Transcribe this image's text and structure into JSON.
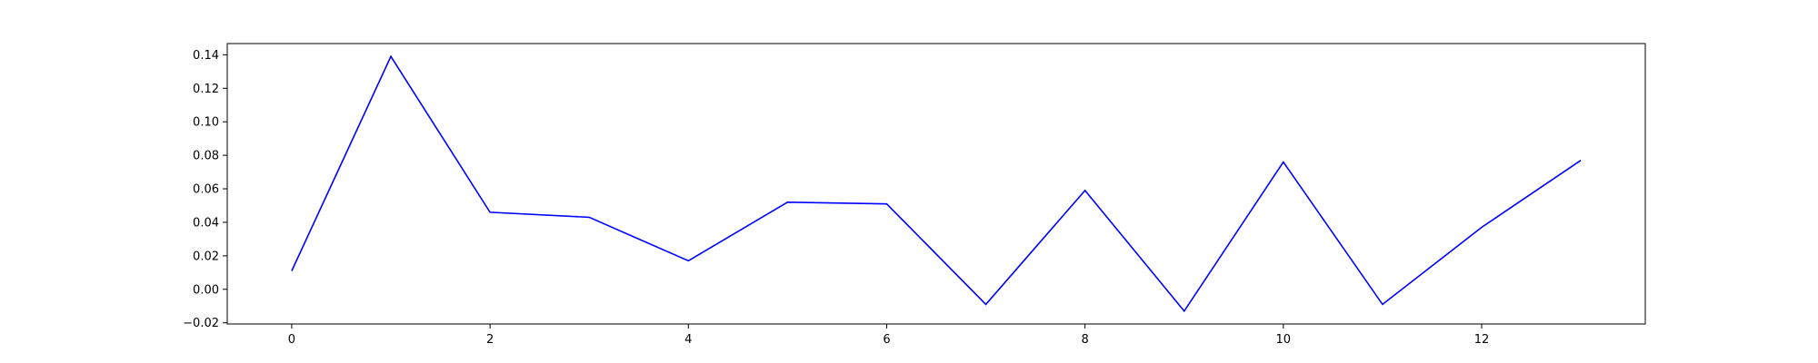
{
  "chart_data": {
    "type": "line",
    "title": "",
    "xlabel": "",
    "ylabel": "",
    "xlim": [
      -0.65,
      13.65
    ],
    "ylim": [
      -0.0207,
      0.1467
    ],
    "xticks": [
      0,
      2,
      4,
      6,
      8,
      10,
      12
    ],
    "xtick_labels": [
      "0",
      "2",
      "4",
      "6",
      "8",
      "10",
      "12"
    ],
    "yticks": [
      -0.02,
      0.0,
      0.02,
      0.04,
      0.06,
      0.08,
      0.1,
      0.12,
      0.14
    ],
    "ytick_labels": [
      "−0.02",
      "0.00",
      "0.02",
      "0.04",
      "0.06",
      "0.08",
      "0.10",
      "0.12",
      "0.14"
    ],
    "grid": false,
    "legend": "none",
    "x": [
      0,
      1,
      2,
      3,
      4,
      5,
      6,
      7,
      8,
      9,
      10,
      11,
      12,
      13
    ],
    "series": [
      {
        "color": "#0000ff",
        "values": [
          0.011,
          0.139,
          0.046,
          0.043,
          0.017,
          0.052,
          0.051,
          -0.009,
          0.059,
          -0.013,
          0.076,
          -0.009,
          0.037,
          0.077
        ]
      }
    ]
  }
}
